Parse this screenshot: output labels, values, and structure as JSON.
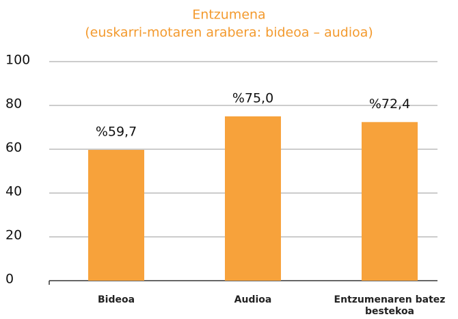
{
  "chart_data": {
    "type": "bar",
    "title": "Entzumena",
    "subtitle": "(euskarri-motaren arabera: bideoa – audioa)",
    "categories": [
      "Bideoa",
      "Audioa",
      "Entzumenaren batez bestekoa"
    ],
    "values": [
      59.7,
      75.0,
      72.4
    ],
    "value_labels": [
      "%59,7",
      "%75,0",
      "%72,4"
    ],
    "color": "#f7a23b",
    "ylim": [
      0,
      100
    ],
    "yticks": [
      0,
      20,
      40,
      60,
      80,
      100
    ],
    "grid": true
  }
}
